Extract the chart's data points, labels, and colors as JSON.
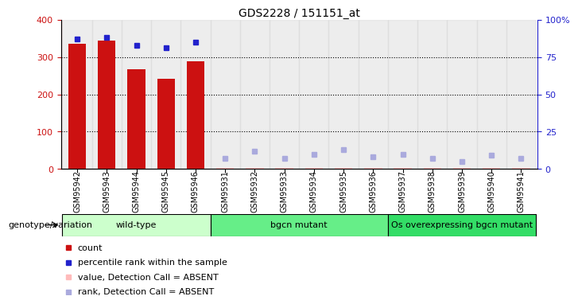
{
  "title": "GDS2228 / 151151_at",
  "samples": [
    "GSM95942",
    "GSM95943",
    "GSM95944",
    "GSM95945",
    "GSM95946",
    "GSM95931",
    "GSM95932",
    "GSM95933",
    "GSM95934",
    "GSM95935",
    "GSM95936",
    "GSM95937",
    "GSM95938",
    "GSM95939",
    "GSM95940",
    "GSM95941"
  ],
  "count_values": [
    335,
    345,
    267,
    242,
    288,
    2,
    3,
    2,
    3,
    3,
    2,
    2,
    2,
    2,
    2,
    2
  ],
  "count_present": [
    true,
    true,
    true,
    true,
    true,
    false,
    false,
    false,
    false,
    false,
    false,
    false,
    false,
    false,
    false,
    false
  ],
  "percentile_values": [
    87,
    88,
    83,
    81,
    85,
    7,
    12,
    7,
    10,
    13,
    8,
    10,
    7,
    5,
    9,
    7
  ],
  "percentile_present": [
    true,
    true,
    true,
    true,
    true,
    false,
    false,
    false,
    false,
    false,
    false,
    false,
    false,
    false,
    false,
    false
  ],
  "groups": [
    {
      "label": "wild-type",
      "start": 0,
      "end": 5
    },
    {
      "label": "bgcn mutant",
      "start": 5,
      "end": 11
    },
    {
      "label": "Os overexpressing bgcn mutant",
      "start": 11,
      "end": 16
    }
  ],
  "group_colors": [
    "#ccffcc",
    "#66ee88",
    "#33dd66"
  ],
  "group_label": "genotype/variation",
  "ylim_left": [
    0,
    400
  ],
  "ylim_right": [
    0,
    100
  ],
  "yticks_left": [
    0,
    100,
    200,
    300,
    400
  ],
  "yticks_right": [
    0,
    25,
    50,
    75,
    100
  ],
  "yticklabels_right": [
    "0",
    "25",
    "50",
    "75",
    "100%"
  ],
  "bar_width": 0.6,
  "bar_color_present": "#cc1111",
  "bar_color_absent": "#ffbbbb",
  "dot_color_present": "#2222cc",
  "dot_color_absent": "#aaaadd",
  "left_axis_color": "#cc1111",
  "right_axis_color": "#2222cc",
  "grid_dotted_at": [
    100,
    200,
    300
  ],
  "legend_items": [
    {
      "color": "#cc1111",
      "label": "count"
    },
    {
      "color": "#2222cc",
      "label": "percentile rank within the sample"
    },
    {
      "color": "#ffbbbb",
      "label": "value, Detection Call = ABSENT"
    },
    {
      "color": "#aaaadd",
      "label": "rank, Detection Call = ABSENT"
    }
  ]
}
